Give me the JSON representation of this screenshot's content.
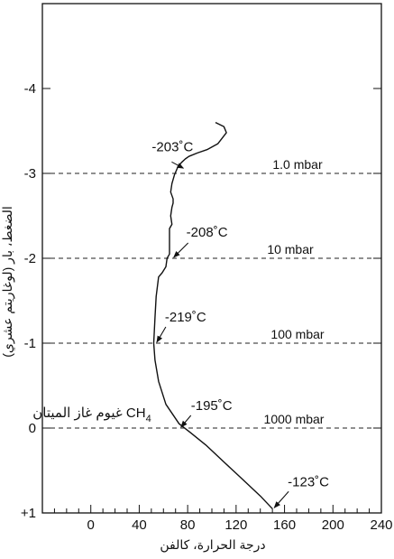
{
  "chart_data": {
    "type": "line",
    "xlabel": "درجة الحرارة، كالفن",
    "ylabel": "الضغط، بار (لوغاريتم عشري)",
    "xlim": [
      -40,
      240
    ],
    "ylim": [
      1,
      -5
    ],
    "x_ticks": [
      0,
      40,
      80,
      120,
      160,
      200,
      240
    ],
    "y_ticks": [
      -4,
      -3,
      -2,
      -1,
      0,
      1
    ],
    "y_tick_labels": [
      "-4",
      "-3",
      "-2",
      "-1",
      "0",
      "+1"
    ],
    "grid": false,
    "series": [
      {
        "x": [
          150,
          140,
          125,
          110,
          95,
          82,
          73,
          62,
          56,
          53,
          52,
          53,
          54,
          56,
          59,
          62,
          63,
          65,
          65,
          65,
          67,
          66,
          67,
          68,
          68,
          66,
          67,
          69,
          72,
          75,
          78,
          81,
          88,
          96,
          105,
          112,
          110,
          103
        ],
        "y": [
          0.95,
          0.8,
          0.6,
          0.4,
          0.2,
          0.05,
          -0.05,
          -0.28,
          -0.55,
          -0.8,
          -1.0,
          -1.3,
          -1.55,
          -1.78,
          -1.83,
          -1.9,
          -2.0,
          -2.05,
          -2.2,
          -2.35,
          -2.4,
          -2.5,
          -2.6,
          -2.65,
          -2.7,
          -2.78,
          -2.88,
          -2.98,
          -3.08,
          -3.13,
          -3.17,
          -3.2,
          -3.24,
          -3.28,
          -3.35,
          -3.48,
          -3.55,
          -3.6
        ]
      }
    ],
    "pressure_lines": [
      {
        "y": -3,
        "label": "1.0 mbar"
      },
      {
        "y": -2,
        "label": "10 mbar"
      },
      {
        "y": -1,
        "label": "100 mbar"
      },
      {
        "y": 0,
        "label": "1000 mbar"
      }
    ],
    "annotations": [
      {
        "text": "-203˚C",
        "x": 75,
        "y": -3.05
      },
      {
        "text": "-208˚C",
        "x": 67,
        "y": -2.0
      },
      {
        "text": "-219˚C",
        "x": 53,
        "y": -1.0
      },
      {
        "text": "-195˚C",
        "x": 73,
        "y": 0.0
      },
      {
        "text": "-123˚C",
        "x": 150,
        "y": 0.95
      }
    ],
    "cloud_label": "غيوم غاز الميتان CH",
    "cloud_label_subscript": "4"
  }
}
